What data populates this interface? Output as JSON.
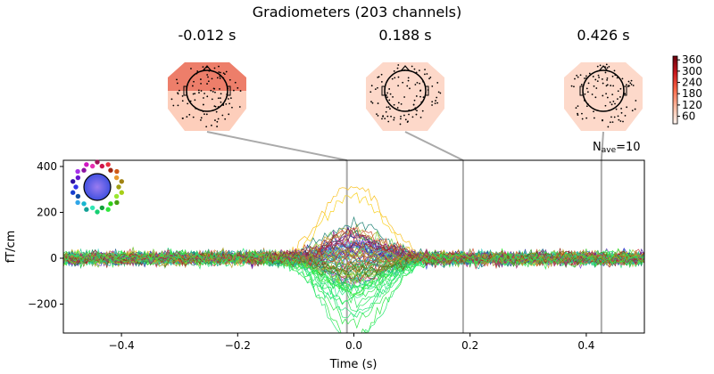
{
  "chart_data": {
    "type": "line",
    "title": "Gradiometers (203 channels)",
    "xlabel": "Time (s)",
    "ylabel": "fT/cm",
    "xlim": [
      -0.5,
      0.5
    ],
    "ylim": [
      -326,
      427
    ],
    "xticks": [
      "-0.4",
      "-0.2",
      "0.0",
      "0.2",
      "0.4"
    ],
    "xtick_values": [
      -0.4,
      -0.2,
      0.0,
      0.2,
      0.4
    ],
    "yticks": [
      "-200",
      "0",
      "200",
      "400"
    ],
    "ytick_values": [
      -200,
      0,
      200,
      400
    ],
    "nave_label": "N",
    "nave_sub": "ave",
    "nave_value": "=10",
    "n_channels": 203,
    "peak_amplitude_approx": 380,
    "peak_time_approx": 0.0,
    "topomaps": [
      {
        "label": "-0.012 s",
        "time": -0.012,
        "intensity": 0.75
      },
      {
        "label": "0.188 s",
        "time": 0.188,
        "intensity": 0.25
      },
      {
        "label": "0.426 s",
        "time": 0.426,
        "intensity": 0.22
      }
    ],
    "colorbar": {
      "ticks": [
        "60",
        "120",
        "180",
        "240",
        "300",
        "360"
      ],
      "tick_values": [
        60,
        120,
        180,
        240,
        300,
        360
      ],
      "range": [
        20,
        380
      ],
      "colormap": "Reds"
    },
    "grid": false
  }
}
